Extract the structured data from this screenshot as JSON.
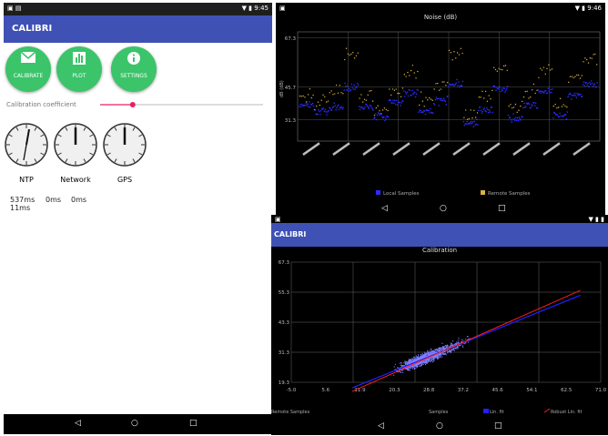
{
  "left_phone": {
    "status_time": "9:45",
    "app_title": "CALIBRI",
    "buttons": [
      {
        "label": "CALIBRATE",
        "icon": "envelope-icon"
      },
      {
        "label": "PLOT",
        "icon": "chart-icon"
      },
      {
        "label": "SETTINGS",
        "icon": "info-icon"
      }
    ],
    "calibration_label": "Calibration coefficient",
    "slider_value": 0.2,
    "accent_color": "#3F51B5",
    "button_color": "#3bc46a",
    "clocks": [
      {
        "name": "NTP",
        "value": "537ms\n11ms"
      },
      {
        "name": "Network",
        "value": "0ms"
      },
      {
        "name": "GPS",
        "value": "0ms"
      }
    ]
  },
  "noise_screen": {
    "status_time": "9:46",
    "title": "Noise (dB)",
    "legend": [
      "Local Samples",
      "Remote Samples"
    ],
    "series_colors": {
      "local": "#2b2bff",
      "remote": "#d9b43a"
    }
  },
  "calib_screen": {
    "app_title": "CALIBRI",
    "title": "Calibration",
    "legend": [
      "Remote Samples",
      "Samples",
      "Lin. fit",
      "Robust Lin. fit"
    ],
    "colors": {
      "samples": "#7f7fff",
      "lin_fit": "#2020ff",
      "robust_fit": "#ff2020"
    }
  },
  "chart_data": [
    {
      "type": "scatter",
      "title": "Noise (dB)",
      "ylabel": "dB",
      "y_ticks": [
        31.3,
        45.7,
        67.3
      ],
      "ylim": [
        22,
        70
      ],
      "grid": true,
      "legend_placement": "bottom",
      "series": [
        {
          "name": "Local Samples",
          "pattern": [
            38,
            35,
            37,
            46,
            37,
            33,
            39,
            43,
            35,
            40,
            47,
            30,
            36,
            45,
            32,
            38,
            44,
            33,
            42,
            47
          ]
        },
        {
          "name": "Remote Samples",
          "pattern": [
            42,
            40,
            44,
            60,
            42,
            36,
            44,
            52,
            40,
            46,
            62,
            34,
            42,
            54,
            36,
            44,
            54,
            38,
            50,
            58
          ]
        }
      ]
    },
    {
      "type": "scatter",
      "title": "Calibration",
      "x_ticks": [
        "-5.0",
        "5.6",
        "11.9",
        "20.3",
        "28.8",
        "37.2",
        "45.6",
        "54.1",
        "62.5",
        "71.0"
      ],
      "y_ticks": [
        "19.3",
        "31.3",
        "43.3",
        "55.3",
        "67.3"
      ],
      "xlim": [
        -5,
        71
      ],
      "ylim": [
        19.3,
        67.3
      ],
      "grid": true,
      "legend_placement": "bottom",
      "lin_fit": {
        "slope": 0.66,
        "intercept": 10.5
      },
      "robust_fit": {
        "slope": 0.72,
        "intercept": 8.5
      }
    }
  ]
}
